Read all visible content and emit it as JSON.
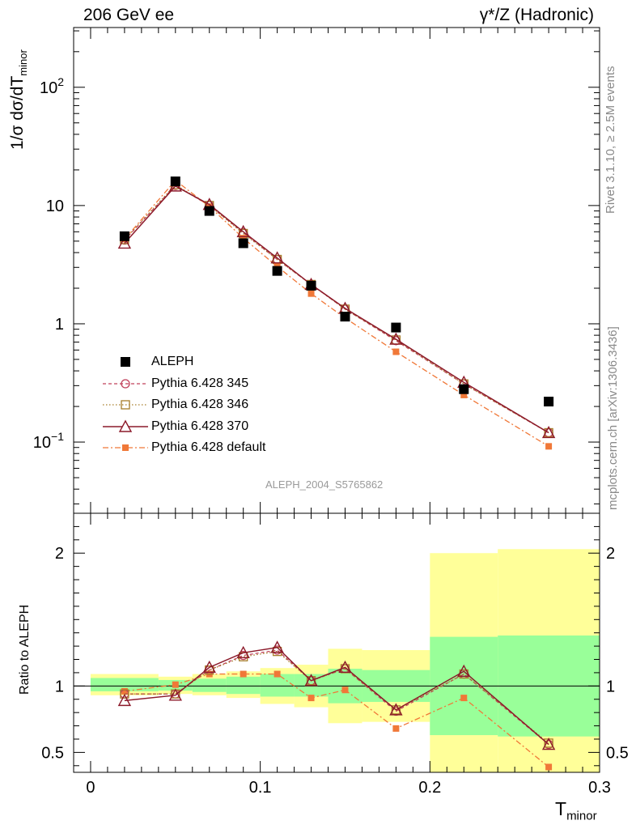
{
  "header": {
    "left_title": "206 GeV ee",
    "right_title": "γ*/Z (Hadronic)"
  },
  "side": {
    "rivet_label": "Rivet 3.1.10, ≥ 2.5M events",
    "mcplots_label": "mcplots.cern.ch [arXiv:1306.3436]"
  },
  "watermark": "ALEPH_2004_S5765862",
  "axes": {
    "top_ylabel_main": "1/σ  dσ/dT",
    "top_ylabel_sub": "minor",
    "bottom_ylabel": "Ratio to ALEPH",
    "xlabel_main": "T",
    "xlabel_sub": "minor"
  },
  "chart_data": [
    {
      "type": "line",
      "panel": "main",
      "yscale": "log",
      "xlim": [
        -0.01,
        0.3
      ],
      "ylim": [
        0.025,
        320
      ],
      "ytick_values": [
        0.1,
        1,
        10,
        100
      ],
      "ytick_labels": [
        "10^-1",
        "1",
        "10",
        "10^2"
      ],
      "x": [
        0.02,
        0.05,
        0.07,
        0.09,
        0.11,
        0.13,
        0.15,
        0.18,
        0.22,
        0.27
      ],
      "series": [
        {
          "name": "ALEPH",
          "color": "#000000",
          "style": "square-marker",
          "values": [
            5.5,
            16.0,
            9.0,
            4.8,
            2.8,
            2.1,
            1.15,
            0.93,
            0.28,
            0.22
          ]
        },
        {
          "name": "Pythia 6.428 345",
          "color": "#c0405a",
          "style": "dashed-circle",
          "values": [
            5.1,
            14.8,
            10.0,
            5.9,
            3.5,
            2.15,
            1.33,
            0.72,
            0.31,
            0.12
          ]
        },
        {
          "name": "Pythia 6.428 346",
          "color": "#a67d2a",
          "style": "dotted-square",
          "values": [
            5.15,
            15.0,
            10.0,
            5.8,
            3.5,
            2.15,
            1.33,
            0.73,
            0.31,
            0.12
          ]
        },
        {
          "name": "Pythia 6.428 370",
          "color": "#8c1a2a",
          "style": "solid-triangle",
          "values": [
            4.8,
            14.6,
            10.2,
            6.0,
            3.6,
            2.15,
            1.35,
            0.74,
            0.32,
            0.12
          ]
        },
        {
          "name": "Pythia 6.428 default",
          "color": "#f07838",
          "style": "dashdot-filled-square",
          "values": [
            5.2,
            16.3,
            9.8,
            5.3,
            3.05,
            1.8,
            1.12,
            0.58,
            0.25,
            0.092
          ]
        }
      ]
    },
    {
      "type": "line",
      "panel": "ratio",
      "yscale": "linear",
      "xlim": [
        -0.01,
        0.3
      ],
      "ylim": [
        0.35,
        2.3
      ],
      "ytick_labels": [
        "0.5",
        "1",
        "2"
      ],
      "xtick_labels": [
        "0",
        "0.1",
        "0.2",
        "0.3"
      ],
      "reference_line": 1,
      "bins": [
        [
          0.0,
          0.04
        ],
        [
          0.04,
          0.06
        ],
        [
          0.06,
          0.08
        ],
        [
          0.08,
          0.1
        ],
        [
          0.1,
          0.12
        ],
        [
          0.12,
          0.14
        ],
        [
          0.14,
          0.16
        ],
        [
          0.16,
          0.2
        ],
        [
          0.2,
          0.24
        ],
        [
          0.24,
          0.3
        ]
      ],
      "band_inner": [
        [
          0.96,
          1.06
        ],
        [
          0.965,
          1.045
        ],
        [
          0.955,
          1.055
        ],
        [
          0.94,
          1.07
        ],
        [
          0.92,
          1.09
        ],
        [
          0.92,
          1.09
        ],
        [
          0.87,
          1.13
        ],
        [
          0.88,
          1.12
        ],
        [
          0.63,
          1.37
        ],
        [
          0.62,
          1.38
        ]
      ],
      "band_outer": [
        [
          0.93,
          1.09
        ],
        [
          0.94,
          1.07
        ],
        [
          0.93,
          1.09
        ],
        [
          0.91,
          1.11
        ],
        [
          0.865,
          1.135
        ],
        [
          0.84,
          1.16
        ],
        [
          0.72,
          1.28
        ],
        [
          0.73,
          1.27
        ],
        [
          0.35,
          2.0
        ],
        [
          0.35,
          2.03
        ]
      ],
      "x": [
        0.02,
        0.05,
        0.07,
        0.09,
        0.11,
        0.13,
        0.15,
        0.18,
        0.22,
        0.27
      ],
      "series": [
        {
          "name": "Pythia 6.428 345",
          "color": "#c0405a",
          "values": [
            0.94,
            0.94,
            1.12,
            1.23,
            1.27,
            1.04,
            1.13,
            0.81,
            1.09,
            0.56
          ]
        },
        {
          "name": "Pythia 6.428 346",
          "color": "#a67d2a",
          "values": [
            0.94,
            0.94,
            1.12,
            1.22,
            1.26,
            1.04,
            1.13,
            0.82,
            1.09,
            0.57
          ]
        },
        {
          "name": "Pythia 6.428 370",
          "color": "#8c1a2a",
          "values": [
            0.89,
            0.93,
            1.14,
            1.25,
            1.29,
            1.04,
            1.14,
            0.82,
            1.11,
            0.56
          ]
        },
        {
          "name": "Pythia 6.428 default",
          "color": "#f07838",
          "values": [
            0.96,
            1.01,
            1.09,
            1.09,
            1.09,
            0.91,
            0.97,
            0.68,
            0.91,
            0.39
          ]
        }
      ]
    }
  ]
}
